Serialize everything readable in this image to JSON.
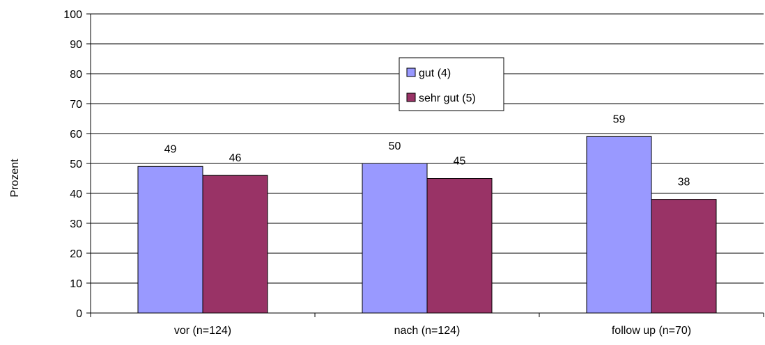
{
  "chart_data": {
    "type": "bar",
    "categories": [
      "vor (n=124)",
      "nach (n=124)",
      "follow up (n=70)"
    ],
    "series": [
      {
        "name": "gut (4)",
        "values": [
          49,
          50,
          59
        ],
        "color": "#9999ff"
      },
      {
        "name": "sehr gut (5)",
        "values": [
          46,
          45,
          38
        ],
        "color": "#993366"
      }
    ],
    "ylabel": "Prozent",
    "ylim": [
      0,
      100
    ],
    "yticks": [
      0,
      10,
      20,
      30,
      40,
      50,
      60,
      70,
      80,
      90,
      100
    ],
    "grid": true,
    "legend_position": "top-center",
    "data_labels": true
  }
}
